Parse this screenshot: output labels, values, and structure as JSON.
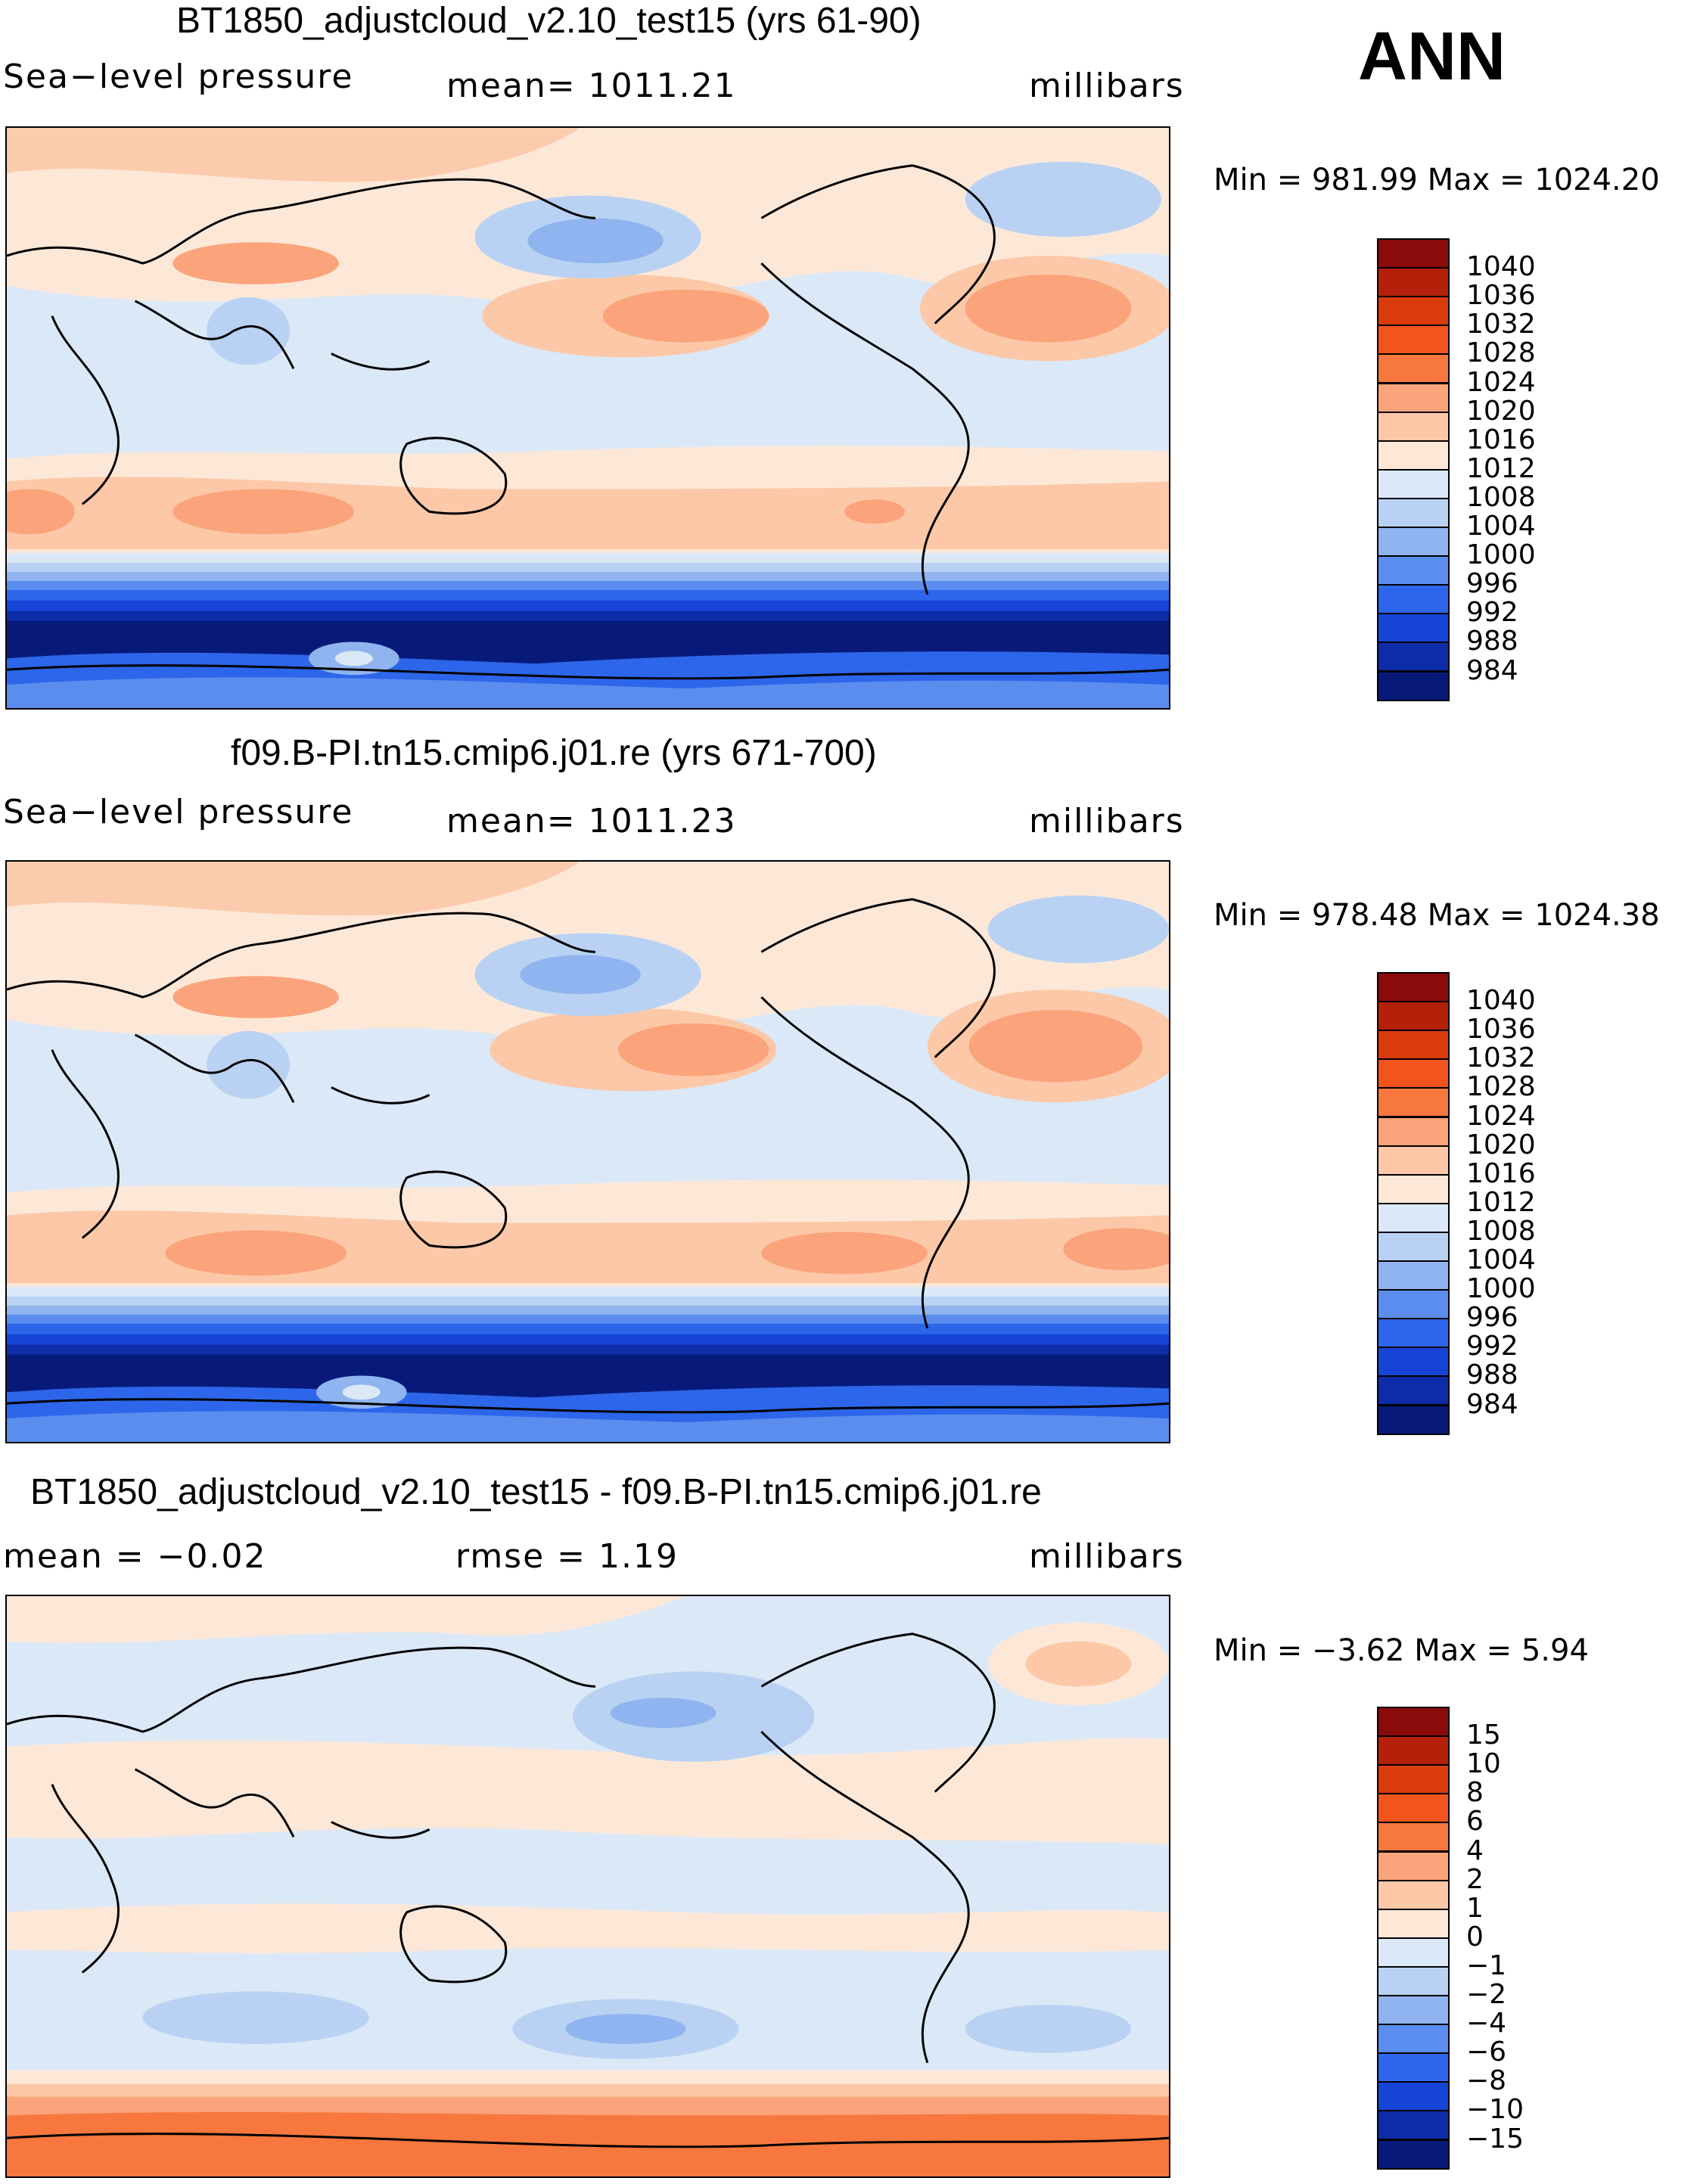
{
  "season": "ANN",
  "panels": [
    {
      "title": "BT1850_adjustcloud_v2.10_test15 (yrs 61-90)",
      "left_label": "Sea−level  pressure",
      "center_label": "mean=  1011.21",
      "units": "millibars",
      "minmax": "Min  =  981.99  Max  =  1024.20",
      "colorbar": {
        "labels": [
          "1040",
          "1036",
          "1032",
          "1028",
          "1024",
          "1020",
          "1016",
          "1012",
          "1008",
          "1004",
          "1000",
          "996",
          "992",
          "988",
          "984"
        ],
        "colors": [
          "#8b0a0a",
          "#b5200a",
          "#d93b0d",
          "#f2541e",
          "#f7773f",
          "#fba37a",
          "#fcc8a8",
          "#fde8d8",
          "#dbe8f7",
          "#b9d2f3",
          "#8fb4ef",
          "#5b8def",
          "#2d66ea",
          "#1544d6",
          "#0c2ca8",
          "#071a7a"
        ]
      }
    },
    {
      "title": "f09.B-PI.tn15.cmip6.j01.re (yrs 671-700)",
      "left_label": "Sea−level  pressure",
      "center_label": "mean=  1011.23",
      "units": "millibars",
      "minmax": "Min  =  978.48  Max  =  1024.38",
      "colorbar": {
        "labels": [
          "1040",
          "1036",
          "1032",
          "1028",
          "1024",
          "1020",
          "1016",
          "1012",
          "1008",
          "1004",
          "1000",
          "996",
          "992",
          "988",
          "984"
        ],
        "colors": [
          "#8b0a0a",
          "#b5200a",
          "#d93b0d",
          "#f2541e",
          "#f7773f",
          "#fba37a",
          "#fcc8a8",
          "#fde8d8",
          "#dbe8f7",
          "#b9d2f3",
          "#8fb4ef",
          "#5b8def",
          "#2d66ea",
          "#1544d6",
          "#0c2ca8",
          "#071a7a"
        ]
      }
    },
    {
      "title": "BT1850_adjustcloud_v2.10_test15 - f09.B-PI.tn15.cmip6.j01.re",
      "left_label": "mean  =    −0.02",
      "center_label": "rmse  =     1.19",
      "units": "millibars",
      "minmax": "Min  =    −3.62  Max  =      5.94",
      "colorbar": {
        "labels": [
          "15",
          "10",
          "8",
          "6",
          "4",
          "2",
          "1",
          "0",
          "−1",
          "−2",
          "−4",
          "−6",
          "−8",
          "−10",
          "−15"
        ],
        "colors": [
          "#8b0a0a",
          "#b5200a",
          "#d93b0d",
          "#f2541e",
          "#f7773f",
          "#fba37a",
          "#fcc8a8",
          "#fde8d8",
          "#dbe8f7",
          "#b9d2f3",
          "#8fb4ef",
          "#5b8def",
          "#2d66ea",
          "#1544d6",
          "#0c2ca8",
          "#071a7a"
        ]
      }
    }
  ]
}
